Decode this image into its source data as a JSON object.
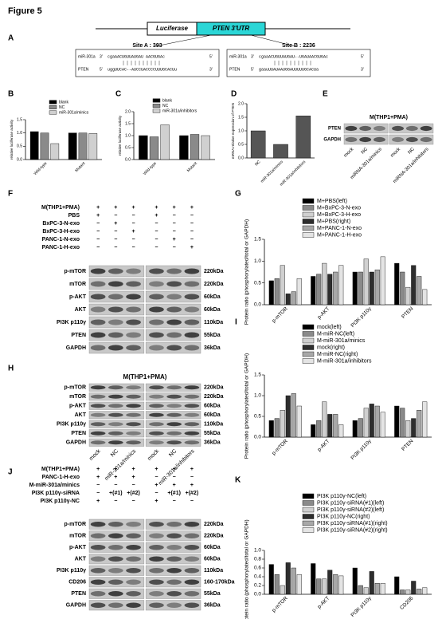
{
  "figure_title": "Figure 5",
  "panel_letters": [
    "A",
    "B",
    "C",
    "D",
    "E",
    "F",
    "G",
    "H",
    "I",
    "J",
    "K"
  ],
  "panel_a": {
    "luciferase": "Luciferase",
    "utr": "PTEN 3'UTR",
    "sites": [
      {
        "label": "Site A : 393",
        "rows": [
          [
            "miR-301a",
            "3'",
            "cgaAACUGUUAUGAU      AACGUGAc",
            "5'"
          ],
          [
            "PTEN",
            "5'",
            "uggUUCAC--AUCCUACCCCUUUGCACUu",
            "3'"
          ]
        ]
      },
      {
        "label": "Site B : 2236",
        "rows": [
          [
            "miR-301a",
            "3'",
            "cgaaACUGUUAUGAU--UGAUAACGUGAc",
            "5'"
          ],
          [
            "PTEN",
            "5'",
            "gaauUUAUAAUGGAUUUUUGCACUa",
            "3'"
          ]
        ]
      }
    ]
  },
  "chart_data": [
    {
      "type": "bar",
      "ylabel": "relative luciferase activity",
      "categories": [
        "Wild-type",
        "Mutant"
      ],
      "series": [
        {
          "name": "blank",
          "color": "#000000",
          "values": [
            1.05,
            1.0
          ]
        },
        {
          "name": "NC",
          "color": "#8a8a8a",
          "values": [
            1.0,
            1.0
          ]
        },
        {
          "name": "miR-301a/minics",
          "color": "#d0d0d0",
          "values": [
            0.6,
            0.98
          ]
        }
      ],
      "ylim": [
        0,
        1.5
      ],
      "yticks": [
        {
          "value": 0,
          "label": "0.0"
        },
        0.5,
        {
          "value": 1,
          "label": "1.0"
        },
        1.5
      ]
    },
    {
      "type": "bar",
      "ylabel": "relative luciferase activity",
      "categories": [
        "Wild-type",
        "Mutant"
      ],
      "series": [
        {
          "name": "blank",
          "color": "#000000",
          "values": [
            1.0,
            1.0
          ]
        },
        {
          "name": "NC",
          "color": "#8a8a8a",
          "values": [
            0.95,
            1.05
          ]
        },
        {
          "name": "miR-301a/inhibitors",
          "color": "#d0d0d0",
          "values": [
            1.45,
            1.0
          ]
        }
      ],
      "ylim": [
        0,
        2
      ],
      "yticks": [
        {
          "value": 0,
          "label": "0.0"
        },
        0.5,
        {
          "value": 1,
          "label": "1.0"
        },
        1.5,
        {
          "value": 2,
          "label": "2.0"
        }
      ]
    },
    {
      "type": "bar",
      "ylabel": "mRNA relative expression of PTEN",
      "categories": [
        "NC",
        "miR-301a/minics",
        "miR-301a/inhibitors"
      ],
      "values": [
        1.0,
        0.5,
        1.55
      ],
      "color": "#555555",
      "ylim": [
        0,
        2
      ],
      "yticks": [
        {
          "value": 0,
          "label": "0.0"
        },
        0.5,
        {
          "value": 1,
          "label": "1.0"
        },
        1.5,
        {
          "value": 2,
          "label": "2.0"
        }
      ]
    },
    {
      "type": "bar",
      "ylabel": "Protein ratio (phosphorylated/total or GAPDH)",
      "categories": [
        "p-mTOR",
        "p-AKT",
        "PI3K p110γ",
        "PTEN"
      ],
      "series": [
        {
          "name": "M+PBS(left)",
          "color": "#000000",
          "values": [
            0.55,
            0.65,
            0.75,
            0.95
          ]
        },
        {
          "name": "M+BxPC-3-N-exo",
          "color": "#8a8a8a",
          "values": [
            0.6,
            0.7,
            0.75,
            0.75
          ]
        },
        {
          "name": "M+BxPC-3-H-exo",
          "color": "#d0d0d0",
          "values": [
            0.9,
            0.95,
            1.05,
            0.4
          ]
        },
        {
          "name": "M+PBS(right)",
          "color": "#2e2e2e",
          "values": [
            0.25,
            0.7,
            0.75,
            0.9
          ]
        },
        {
          "name": "M+PANC-1-N-exo",
          "color": "#a8a8a8",
          "values": [
            0.3,
            0.75,
            0.8,
            0.65
          ]
        },
        {
          "name": "M+PANC-1-H-exo",
          "color": "#e4e4e4",
          "values": [
            0.6,
            0.9,
            1.1,
            0.35
          ]
        }
      ],
      "ylim": [
        0,
        1.5
      ],
      "yticks": [
        {
          "value": 0,
          "label": "0.0"
        },
        0.5,
        {
          "value": 1,
          "label": "1.0"
        },
        1.5
      ]
    },
    {
      "type": "bar",
      "ylabel": "Protein ratio (phosphorylated/total or GAPDH)",
      "categories": [
        "p-mTOR",
        "p-AKT",
        "PI3K p110γ",
        "PTEN"
      ],
      "series": [
        {
          "name": "mock(left)",
          "color": "#000000",
          "values": [
            0.4,
            0.3,
            0.4,
            0.75
          ]
        },
        {
          "name": "M-miR-NC(left)",
          "color": "#8a8a8a",
          "values": [
            0.45,
            0.4,
            0.45,
            0.7
          ]
        },
        {
          "name": "M-miR-301a/minics",
          "color": "#d0d0d0",
          "values": [
            0.65,
            0.85,
            0.7,
            0.4
          ]
        },
        {
          "name": "mock(right)",
          "color": "#2e2e2e",
          "values": [
            1.0,
            0.55,
            0.8,
            0.45
          ]
        },
        {
          "name": "M-miR-NC(right)",
          "color": "#a8a8a8",
          "values": [
            1.05,
            0.55,
            0.75,
            0.65
          ]
        },
        {
          "name": "M-miR-301a/inhibitors",
          "color": "#e4e4e4",
          "values": [
            0.75,
            0.3,
            0.6,
            0.85
          ]
        }
      ],
      "ylim": [
        0,
        1.5
      ],
      "yticks": [
        {
          "value": 0,
          "label": "0.0"
        },
        0.5,
        {
          "value": 1,
          "label": "1.0"
        },
        1.5
      ]
    },
    {
      "type": "bar",
      "ylabel": "Protein ratio (phosphorylated/total or GAPDH)",
      "categories": [
        "p-mTOR",
        "p-AKT",
        "PI3K p110γ",
        "CD206"
      ],
      "series": [
        {
          "name": "PI3K p110γ-NC(left)",
          "color": "#000000",
          "values": [
            0.68,
            0.7,
            0.6,
            0.4
          ]
        },
        {
          "name": "PI3K p110γ-siRNA(#1)(left)",
          "color": "#8a8a8a",
          "values": [
            0.45,
            0.35,
            0.2,
            0.1
          ]
        },
        {
          "name": "PI3K p110γ-siRNA(#2)(left)",
          "color": "#d0d0d0",
          "values": [
            0.2,
            0.35,
            0.15,
            0.1
          ]
        },
        {
          "name": "PI3K p110γ-NC(right)",
          "color": "#2e2e2e",
          "values": [
            0.72,
            0.55,
            0.52,
            0.3
          ]
        },
        {
          "name": "PI3K p110γ-siRNA(#1)(right)",
          "color": "#a8a8a8",
          "values": [
            0.6,
            0.45,
            0.25,
            0.12
          ]
        },
        {
          "name": "PI3K p110γ-siRNA(#2)(right)",
          "color": "#e4e4e4",
          "values": [
            0.45,
            0.42,
            0.25,
            0.15
          ]
        }
      ],
      "ylim": [
        0,
        1
      ],
      "yticks": [
        {
          "value": 0,
          "label": "0.0"
        },
        0.2,
        0.4,
        0.6,
        0.8,
        {
          "value": 1,
          "label": "1.0"
        }
      ]
    }
  ],
  "blot_e": {
    "header": "M(THP1+PMA)",
    "proteins": [
      "PTEN",
      "GAPDH"
    ],
    "lanes": [
      "mock",
      "NC",
      "miRNA-301a/minics",
      "mock",
      "NC",
      "miRNA-301a/inhibitors"
    ]
  },
  "blot_f": {
    "conditions": [
      {
        "name": "M(THP1+PMA)",
        "signs": [
          "+",
          "+",
          "+",
          "+",
          "+",
          "+"
        ]
      },
      {
        "name": "PBS",
        "signs": [
          "+",
          "−",
          "−",
          "+",
          "−",
          "−"
        ]
      },
      {
        "name": "BxPC-3-N-exo",
        "signs": [
          "−",
          "+",
          "−",
          "−",
          "−",
          "−"
        ]
      },
      {
        "name": "BxPC-3-H-exo",
        "signs": [
          "−",
          "−",
          "+",
          "−",
          "−",
          "−"
        ]
      },
      {
        "name": "PANC-1-N-exo",
        "signs": [
          "−",
          "−",
          "−",
          "−",
          "+",
          "−"
        ]
      },
      {
        "name": "PANC-1-H-exo",
        "signs": [
          "−",
          "−",
          "−",
          "−",
          "−",
          "+"
        ]
      }
    ],
    "proteins": [
      {
        "name": "p-mTOR",
        "size": "220kDa"
      },
      {
        "name": "mTOR",
        "size": "220kDa"
      },
      {
        "name": "p-AKT",
        "size": "60kDa"
      },
      {
        "name": "AKT",
        "size": "60kDa"
      },
      {
        "name": "PI3K p110γ",
        "size": "110kDa"
      },
      {
        "name": "PTEN",
        "size": "55kDa"
      },
      {
        "name": "GAPDH",
        "size": "36kDa"
      }
    ]
  },
  "blot_h": {
    "header": "M(THP1+PMA)",
    "proteins": [
      {
        "name": "p-mTOR",
        "size": "220kDa"
      },
      {
        "name": "mTOR",
        "size": "220kDa"
      },
      {
        "name": "p-AKT",
        "size": "60kDa"
      },
      {
        "name": "AKT",
        "size": "60kDa"
      },
      {
        "name": "PI3K p110γ",
        "size": "110kDa"
      },
      {
        "name": "PTEN",
        "size": "55kDa"
      },
      {
        "name": "GAPDH",
        "size": "36kDa"
      }
    ],
    "lanes": [
      "mock",
      "NC",
      "miR-301a/minics",
      "mock",
      "NC",
      "miR-301a/inhibitors"
    ]
  },
  "blot_j": {
    "conditions": [
      {
        "name": "M(THP1+PMA)",
        "signs": [
          "+",
          "+",
          "+",
          "+",
          "+",
          "+"
        ]
      },
      {
        "name": "PANC-1-H-exo",
        "signs": [
          "+",
          "+",
          "+",
          "−",
          "−",
          "−"
        ]
      },
      {
        "name": "M-miR-301a/minics",
        "signs": [
          "−",
          "−",
          "−",
          "+",
          "+",
          "+"
        ]
      },
      {
        "name": "PI3K p110γ-siRNA",
        "signs": [
          "−",
          "+(#1)",
          "+(#2)",
          "−",
          "+(#1)",
          "+(#2)"
        ]
      },
      {
        "name": "PI3K p110γ-NC",
        "signs": [
          "+",
          "−",
          "−",
          "+",
          "−",
          "−"
        ]
      }
    ],
    "proteins": [
      {
        "name": "p-mTOR",
        "size": "220kDa"
      },
      {
        "name": "mTOR",
        "size": "220kDa"
      },
      {
        "name": "p-AKT",
        "size": "60kDa"
      },
      {
        "name": "AKT",
        "size": "60kDa"
      },
      {
        "name": "PI3K p110γ",
        "size": "110kDa"
      },
      {
        "name": "CD206",
        "size": "160-170kDa"
      },
      {
        "name": "PTEN",
        "size": "55kDa"
      },
      {
        "name": "GAPDH",
        "size": "36kDa"
      }
    ]
  }
}
